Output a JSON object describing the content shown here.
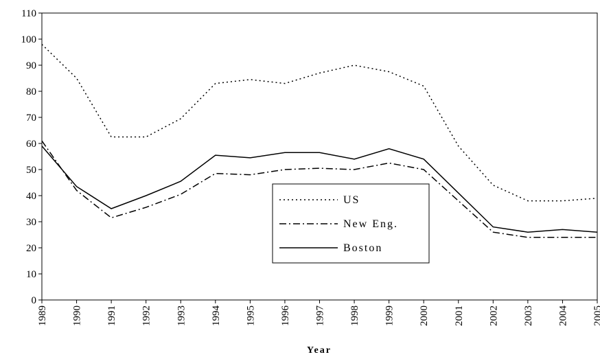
{
  "chart_data": {
    "type": "line",
    "x_label": "Year",
    "x": [
      1989,
      1990,
      1991,
      1992,
      1993,
      1994,
      1995,
      1996,
      1997,
      1998,
      1999,
      2000,
      2001,
      2002,
      2003,
      2004,
      2005
    ],
    "xlim": [
      1989,
      2005
    ],
    "xticks": [
      1989,
      1990,
      1991,
      1992,
      1993,
      1994,
      1995,
      1996,
      1997,
      1998,
      1999,
      2000,
      2001,
      2002,
      2003,
      2004,
      2005
    ],
    "ylim": [
      0,
      110
    ],
    "yticks": [
      0,
      10,
      20,
      30,
      40,
      50,
      60,
      70,
      80,
      90,
      100,
      110
    ],
    "grid": false,
    "legend": "center",
    "series": [
      {
        "name": "US",
        "color": "#000000",
        "style": "dotted",
        "values": [
          98,
          85,
          62.5,
          62.5,
          69.5,
          83,
          84.5,
          83,
          87,
          90,
          87.5,
          82,
          59,
          44,
          38,
          38,
          39
        ]
      },
      {
        "name": "New Eng.",
        "color": "#000000",
        "style": "dashdot",
        "values": [
          61,
          42,
          31.5,
          35.5,
          40.5,
          48.5,
          48,
          50,
          50.5,
          50,
          52.5,
          50,
          38,
          26,
          24,
          24,
          24
        ]
      },
      {
        "name": "Boston",
        "color": "#000000",
        "style": "solid",
        "values": [
          59,
          43.5,
          35,
          40,
          45.5,
          55.5,
          54.5,
          56.5,
          56.5,
          54,
          58,
          54,
          41,
          28,
          26,
          27,
          26
        ]
      }
    ]
  }
}
